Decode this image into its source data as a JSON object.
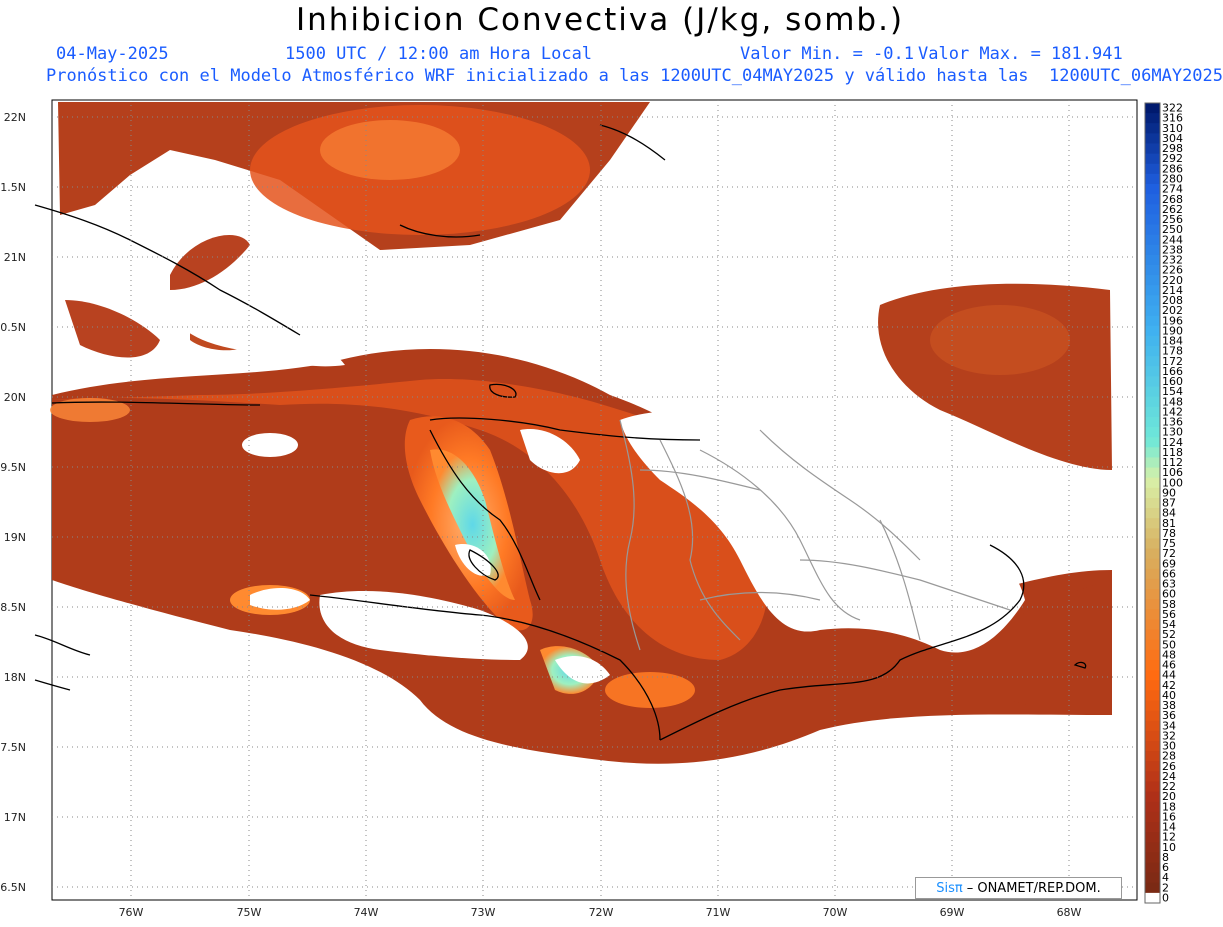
{
  "header": {
    "title": "Inhibicion Convectiva (J/kg, somb.)",
    "date": "04-May-2025",
    "time": "1500 UTC / 12:00 am Hora Local",
    "valor_min": "Valor Min. = -0.1",
    "valor_max": "Valor Max. = 181.941",
    "forecast_line": "Pronóstico con el Modelo Atmosférico WRF inicializado a las 1200UTC_04MAY2025 y válido hasta las  1200UTC_06MAY2025"
  },
  "axes": {
    "lat_labels": [
      "22N",
      "1.5N",
      "21N",
      "0.5N",
      "20N",
      "9.5N",
      "19N",
      "8.5N",
      "18N",
      "7.5N",
      "17N",
      "6.5N"
    ],
    "lon_labels": [
      "76W",
      "75W",
      "74W",
      "73W",
      "72W",
      "71W",
      "70W",
      "69W",
      "68W"
    ]
  },
  "colorbar": {
    "labels": [
      "322",
      "316",
      "310",
      "304",
      "298",
      "292",
      "286",
      "280",
      "274",
      "268",
      "262",
      "256",
      "250",
      "244",
      "238",
      "232",
      "226",
      "220",
      "214",
      "208",
      "202",
      "196",
      "190",
      "184",
      "178",
      "172",
      "166",
      "160",
      "154",
      "148",
      "142",
      "136",
      "130",
      "124",
      "118",
      "112",
      "106",
      "100",
      "90",
      "87",
      "84",
      "81",
      "78",
      "75",
      "72",
      "69",
      "66",
      "63",
      "60",
      "58",
      "56",
      "54",
      "52",
      "50",
      "48",
      "46",
      "44",
      "42",
      "40",
      "38",
      "36",
      "34",
      "32",
      "30",
      "28",
      "26",
      "24",
      "22",
      "20",
      "18",
      "16",
      "14",
      "12",
      "10",
      "8",
      "6",
      "4",
      "2",
      "0"
    ],
    "colors": {
      "dark_blue": "#001a6e",
      "blue": "#1f5fe0",
      "light_blue": "#3fb0f0",
      "cyan": "#6fe8d8",
      "pale_green": "#d8f0a8",
      "tan": "#d8b060",
      "orange": "#ff6a10",
      "red_brown": "#b03018",
      "dark_brown": "#7a2a14",
      "white": "#ffffff"
    }
  },
  "credit": {
    "brand": "Sisπ",
    "text": "– ONAMET/REP.DOM."
  }
}
